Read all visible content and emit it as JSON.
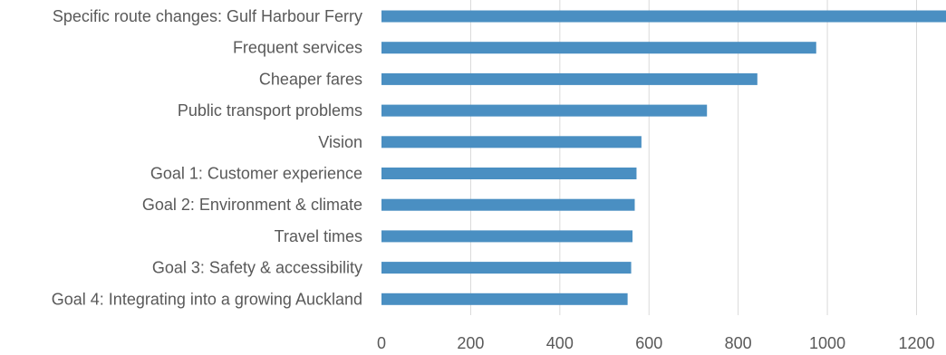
{
  "chart_data": {
    "type": "bar",
    "orientation": "horizontal",
    "categories": [
      "Specific route changes: Gulf Harbour Ferry",
      "Frequent services",
      "Cheaper fares",
      "Public transport problems",
      "Vision",
      "Goal 1: Customer experience",
      "Goal 2: Environment & climate",
      "Travel times",
      "Goal 3: Safety & accessibility",
      "Goal 4: Integrating into a growing Auckland"
    ],
    "values": [
      1270,
      975,
      843,
      730,
      583,
      572,
      568,
      563,
      560,
      552
    ],
    "xlim": [
      0,
      1260
    ],
    "xticks": [
      0,
      200,
      400,
      600,
      800,
      1000,
      1200
    ],
    "grid": true,
    "bar_color": "#4a8fc2",
    "grid_color": "#d9d9d9",
    "text_color": "#595959"
  }
}
